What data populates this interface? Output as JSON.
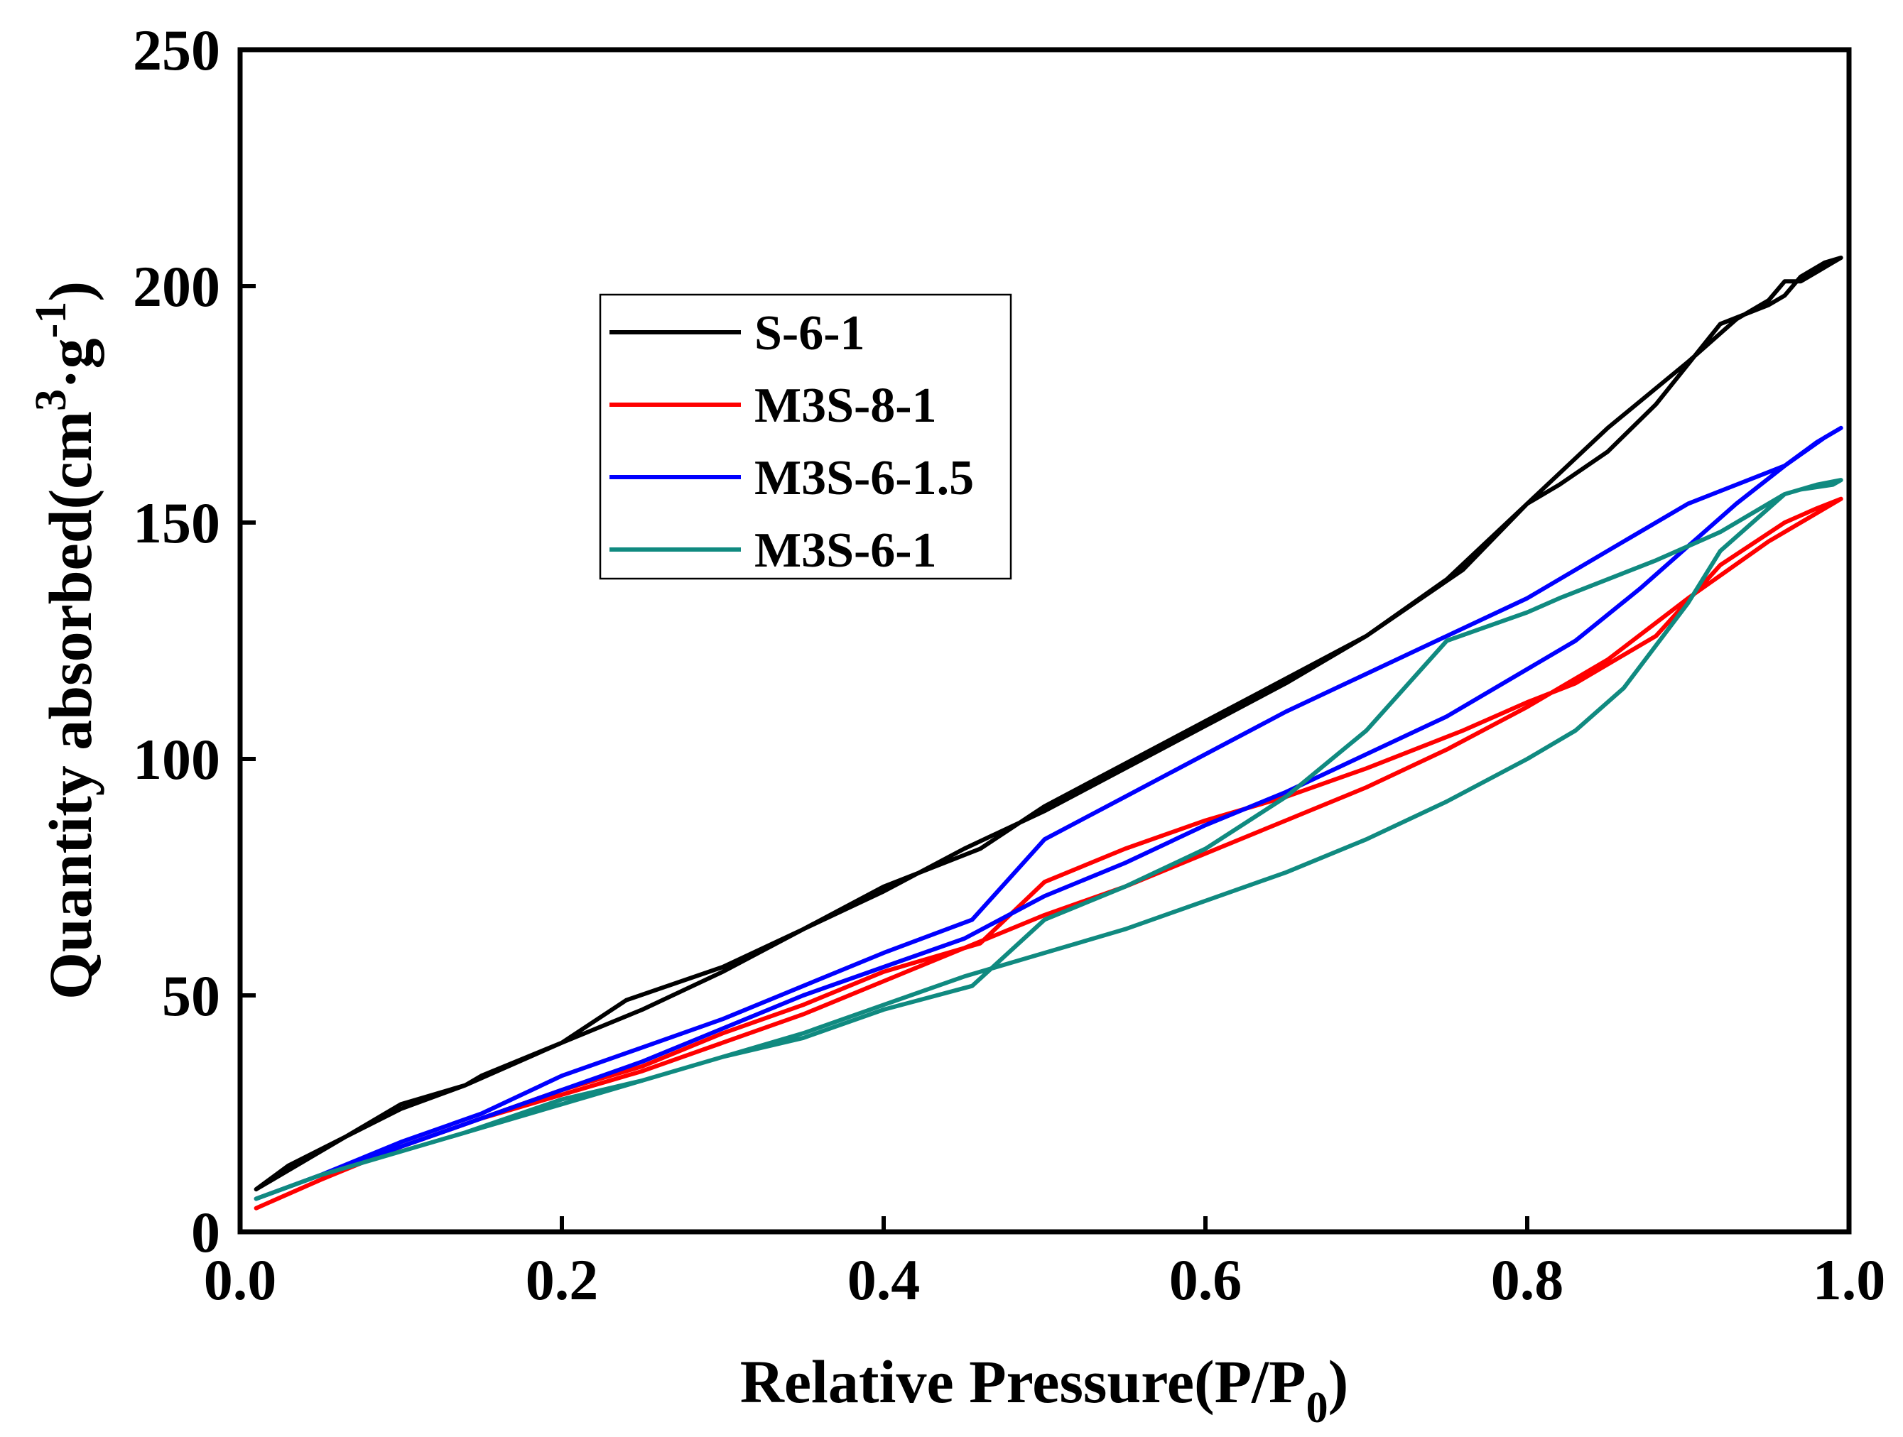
{
  "chart_data": {
    "type": "line",
    "title": "",
    "xlabel": {
      "main": "Relative Pressure(P/P",
      "sub": "0",
      "end": ")"
    },
    "ylabel": {
      "main": "Quantity absorbed(cm",
      "sup1": "3",
      "mid": "·g",
      "sup2": "-1",
      "end": ")"
    },
    "xlim": [
      0.0,
      1.0
    ],
    "ylim": [
      0,
      250
    ],
    "xticks": [
      0.0,
      0.2,
      0.4,
      0.6,
      0.8,
      1.0
    ],
    "xtick_labels": [
      "0.0",
      "0.2",
      "0.4",
      "0.6",
      "0.8",
      "1.0"
    ],
    "yticks": [
      0,
      50,
      100,
      150,
      200,
      250
    ],
    "ytick_labels": [
      "0",
      "50",
      "100",
      "150",
      "200",
      "250"
    ],
    "grid": false,
    "legend_position": "upper-left-center",
    "series": [
      {
        "name": "S-6-1",
        "color": "#000000",
        "x": [
          0.01,
          0.03,
          0.1,
          0.14,
          0.2,
          0.25,
          0.3,
          0.35,
          0.4,
          0.45,
          0.5,
          0.55,
          0.6,
          0.65,
          0.7,
          0.75,
          0.8,
          0.85,
          0.9,
          0.93,
          0.95,
          0.96,
          0.97,
          0.98,
          0.99,
          0.995,
          0.995,
          0.985,
          0.97,
          0.96,
          0.95,
          0.92,
          0.88,
          0.85,
          0.82,
          0.8,
          0.76,
          0.7,
          0.65,
          0.6,
          0.55,
          0.5,
          0.46,
          0.4,
          0.35,
          0.3,
          0.24,
          0.2,
          0.15,
          0.14,
          0.1,
          0.05,
          0.01
        ],
        "y": [
          9,
          14,
          26,
          31,
          40,
          47,
          55,
          64,
          72,
          81,
          89,
          98,
          107,
          116,
          126,
          138,
          154,
          170,
          184,
          193,
          197,
          201,
          201,
          203,
          205,
          206,
          206,
          205,
          202,
          198,
          196,
          192,
          175,
          165,
          158,
          154,
          140,
          126,
          117,
          108,
          99,
          90,
          81,
          73,
          64,
          56,
          49,
          40,
          33,
          31,
          27,
          17,
          9
        ]
      },
      {
        "name": "M3S-8-1",
        "color": "#ff0000",
        "x": [
          0.01,
          0.05,
          0.1,
          0.15,
          0.2,
          0.25,
          0.3,
          0.35,
          0.4,
          0.45,
          0.5,
          0.55,
          0.6,
          0.65,
          0.7,
          0.75,
          0.8,
          0.85,
          0.9,
          0.95,
          0.98,
          0.995,
          0.995,
          0.98,
          0.96,
          0.92,
          0.88,
          0.83,
          0.8,
          0.76,
          0.7,
          0.65,
          0.6,
          0.55,
          0.5,
          0.46,
          0.4,
          0.35,
          0.3,
          0.25,
          0.2,
          0.15,
          0.1,
          0.05,
          0.01
        ],
        "y": [
          5,
          11,
          18,
          24,
          29,
          34,
          40,
          46,
          53,
          60,
          67,
          73,
          80,
          87,
          94,
          102,
          111,
          121,
          134,
          146,
          152,
          155,
          155,
          153,
          150,
          141,
          126,
          116,
          112,
          106,
          98,
          92,
          87,
          81,
          74,
          61,
          55,
          48,
          42,
          35,
          30,
          24,
          18,
          11,
          5
        ]
      },
      {
        "name": "M3S-6-1.5",
        "color": "#0000ff",
        "x": [
          0.01,
          0.05,
          0.1,
          0.15,
          0.2,
          0.25,
          0.3,
          0.35,
          0.4,
          0.45,
          0.5,
          0.55,
          0.6,
          0.65,
          0.7,
          0.75,
          0.8,
          0.83,
          0.87,
          0.9,
          0.93,
          0.96,
          0.98,
          0.99,
          0.995,
          0.995,
          0.985,
          0.96,
          0.9,
          0.86,
          0.8,
          0.75,
          0.7,
          0.65,
          0.6,
          0.55,
          0.5,
          0.455,
          0.4,
          0.35,
          0.3,
          0.25,
          0.2,
          0.15,
          0.1,
          0.05,
          0.01
        ],
        "y": [
          7,
          12,
          18,
          24,
          30,
          36,
          43,
          50,
          56,
          62,
          71,
          78,
          86,
          93,
          101,
          109,
          119,
          125,
          136,
          145,
          154,
          162,
          167,
          169,
          170,
          170,
          168,
          162,
          154,
          146,
          134,
          126,
          118,
          110,
          101,
          92,
          83,
          66,
          59,
          52,
          45,
          39,
          33,
          25,
          19,
          12,
          7
        ]
      },
      {
        "name": "M3S-6-1",
        "color": "#108a80",
        "x": [
          0.01,
          0.05,
          0.1,
          0.15,
          0.2,
          0.25,
          0.3,
          0.35,
          0.4,
          0.45,
          0.5,
          0.55,
          0.6,
          0.65,
          0.7,
          0.75,
          0.8,
          0.83,
          0.86,
          0.88,
          0.9,
          0.92,
          0.95,
          0.96,
          0.97,
          0.99,
          0.995,
          0.995,
          0.98,
          0.96,
          0.92,
          0.88,
          0.85,
          0.82,
          0.8,
          0.75,
          0.7,
          0.65,
          0.6,
          0.55,
          0.5,
          0.455,
          0.4,
          0.35,
          0.3,
          0.25,
          0.2,
          0.14,
          0.1,
          0.05,
          0.01
        ],
        "y": [
          7,
          12,
          17,
          22,
          27,
          32,
          37,
          42,
          48,
          54,
          59,
          64,
          70,
          76,
          83,
          91,
          100,
          106,
          115,
          124,
          133,
          144,
          153,
          156,
          157,
          158,
          159,
          159,
          158,
          156,
          148,
          142,
          138,
          134,
          131,
          125,
          106,
          92,
          81,
          73,
          66,
          52,
          47,
          41,
          37,
          32,
          28,
          21,
          17,
          12,
          7
        ]
      }
    ]
  }
}
